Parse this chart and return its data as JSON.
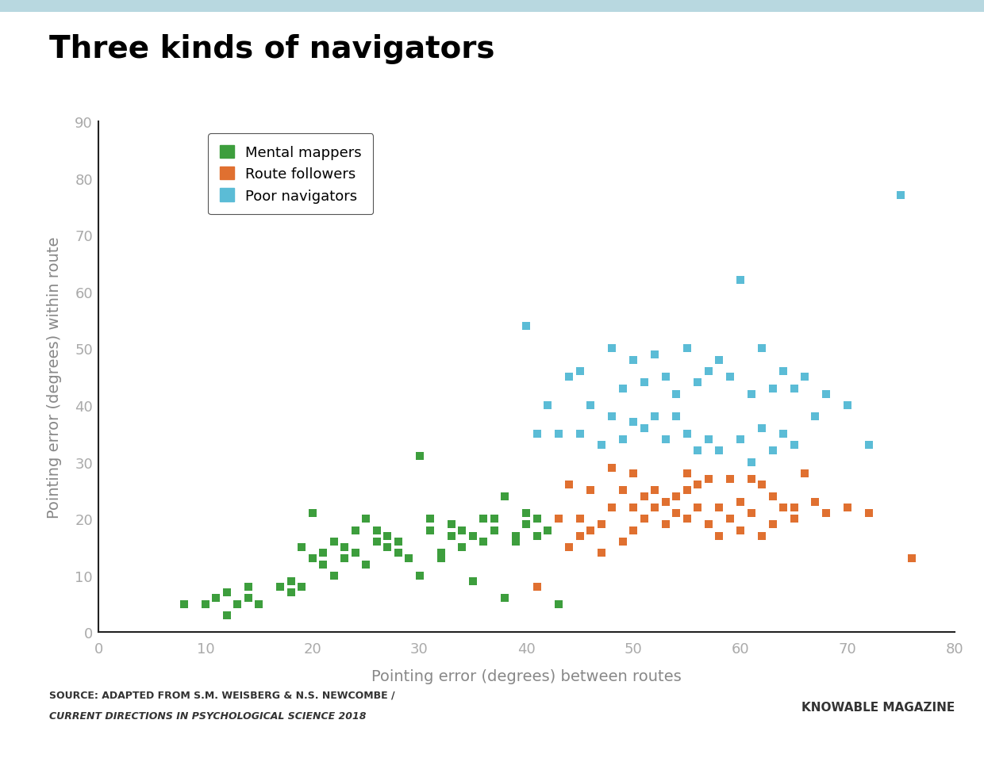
{
  "title": "Three kinds of navigators",
  "xlabel": "Pointing error (degrees) between routes",
  "ylabel": "Pointing error (degrees) within route",
  "xlim": [
    0,
    80
  ],
  "ylim": [
    0,
    90
  ],
  "xticks": [
    0,
    10,
    20,
    30,
    40,
    50,
    60,
    70,
    80
  ],
  "yticks": [
    0,
    10,
    20,
    30,
    40,
    50,
    60,
    70,
    80,
    90
  ],
  "source_line1": "SOURCE: ADAPTED FROM S.M. WEISBERG & N.S. NEWCOMBE /",
  "source_line2": "CURRENT DIRECTIONS IN PSYCHOLOGICAL SCIENCE 2018",
  "credit": "KNOWABLE MAGAZINE",
  "mental_mappers_color": "#3d9e3d",
  "route_followers_color": "#e07030",
  "poor_navigators_color": "#5bbcd6",
  "mental_mappers_label": "Mental mappers",
  "route_followers_label": "Route followers",
  "poor_navigators_label": "Poor navigators",
  "mental_mappers_x": [
    8,
    10,
    11,
    12,
    12,
    13,
    14,
    14,
    15,
    17,
    18,
    18,
    19,
    19,
    20,
    20,
    21,
    21,
    22,
    22,
    23,
    23,
    24,
    24,
    25,
    25,
    26,
    26,
    27,
    27,
    28,
    28,
    29,
    30,
    30,
    31,
    31,
    32,
    32,
    33,
    33,
    34,
    34,
    35,
    35,
    36,
    36,
    37,
    37,
    38,
    38,
    39,
    39,
    40,
    40,
    41,
    41,
    42,
    43
  ],
  "mental_mappers_y": [
    5,
    5,
    6,
    3,
    7,
    5,
    8,
    6,
    5,
    8,
    9,
    7,
    15,
    8,
    21,
    13,
    14,
    12,
    16,
    10,
    13,
    15,
    14,
    18,
    20,
    12,
    18,
    16,
    17,
    15,
    16,
    14,
    13,
    31,
    10,
    18,
    20,
    13,
    14,
    17,
    19,
    15,
    18,
    17,
    9,
    16,
    20,
    20,
    18,
    24,
    6,
    17,
    16,
    19,
    21,
    20,
    17,
    18,
    5
  ],
  "route_followers_x": [
    41,
    43,
    44,
    44,
    45,
    45,
    46,
    46,
    47,
    47,
    48,
    48,
    49,
    49,
    50,
    50,
    50,
    51,
    51,
    52,
    52,
    53,
    53,
    54,
    54,
    55,
    55,
    55,
    56,
    56,
    57,
    57,
    58,
    58,
    59,
    59,
    60,
    60,
    61,
    61,
    62,
    62,
    63,
    63,
    64,
    65,
    65,
    66,
    67,
    68,
    70,
    72,
    76
  ],
  "route_followers_y": [
    8,
    20,
    26,
    15,
    20,
    17,
    25,
    18,
    19,
    14,
    29,
    22,
    25,
    16,
    28,
    22,
    18,
    24,
    20,
    25,
    22,
    23,
    19,
    24,
    21,
    28,
    25,
    20,
    26,
    22,
    27,
    19,
    22,
    17,
    27,
    20,
    23,
    18,
    27,
    21,
    26,
    17,
    24,
    19,
    22,
    20,
    22,
    28,
    23,
    21,
    22,
    21,
    13
  ],
  "poor_navigators_x": [
    40,
    41,
    42,
    43,
    44,
    45,
    45,
    46,
    47,
    48,
    48,
    49,
    49,
    50,
    50,
    51,
    51,
    52,
    52,
    53,
    53,
    54,
    54,
    55,
    55,
    56,
    56,
    57,
    57,
    58,
    58,
    59,
    60,
    60,
    61,
    61,
    62,
    62,
    63,
    63,
    64,
    64,
    65,
    65,
    66,
    67,
    68,
    70,
    72,
    75
  ],
  "poor_navigators_y": [
    54,
    35,
    40,
    35,
    45,
    46,
    35,
    40,
    33,
    50,
    38,
    43,
    34,
    48,
    37,
    44,
    36,
    49,
    38,
    45,
    34,
    42,
    38,
    50,
    35,
    44,
    32,
    46,
    34,
    48,
    32,
    45,
    62,
    34,
    42,
    30,
    50,
    36,
    43,
    32,
    46,
    35,
    43,
    33,
    45,
    38,
    42,
    40,
    33,
    77
  ],
  "marker": "s",
  "markersize": 55,
  "background_color": "#ffffff",
  "top_bar_color": "#b8d8e0",
  "tick_color": "#aaaaaa",
  "axis_label_color": "#888888",
  "spine_color": "#222222",
  "title_fontsize": 28,
  "tick_fontsize": 13,
  "axis_label_fontsize": 14
}
